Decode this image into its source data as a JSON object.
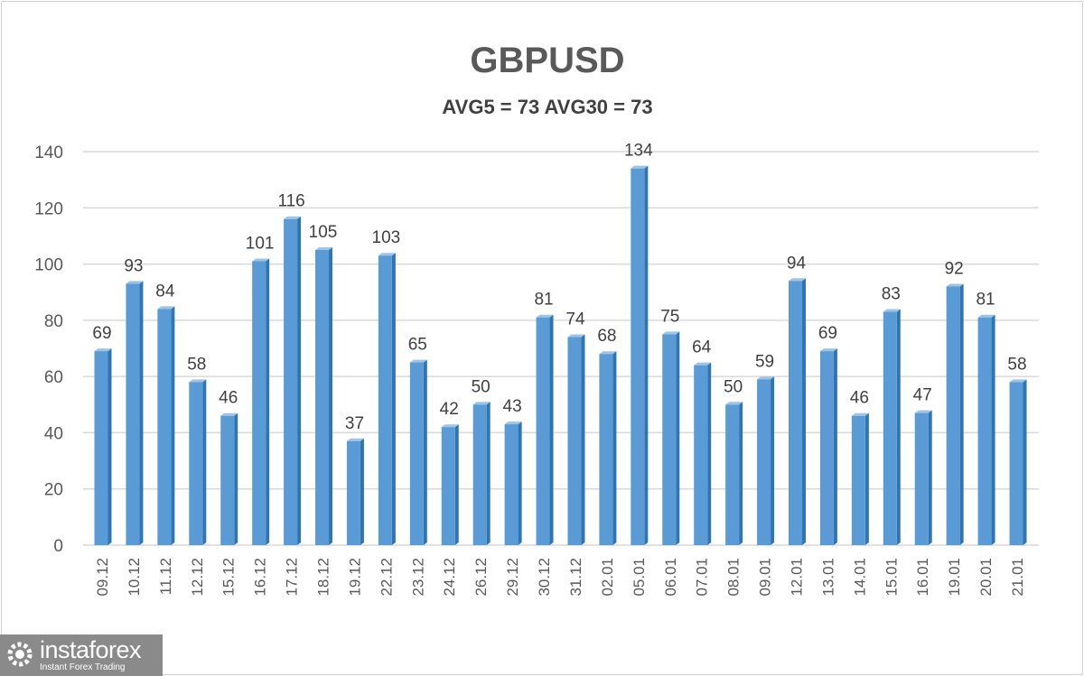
{
  "chart_data": {
    "type": "bar",
    "title": "GBPUSD",
    "subtitle": "AVG5 = 73 AVG30 = 73",
    "categories": [
      "09.12",
      "10.12",
      "11.12",
      "12.12",
      "15.12",
      "16.12",
      "17.12",
      "18.12",
      "19.12",
      "22.12",
      "23.12",
      "24.12",
      "26.12",
      "29.12",
      "30.12",
      "31.12",
      "02.01",
      "05.01",
      "06.01",
      "07.01",
      "08.01",
      "09.01",
      "12.01",
      "13.01",
      "14.01",
      "15.01",
      "16.01",
      "19.01",
      "20.01",
      "21.01"
    ],
    "values": [
      69,
      93,
      84,
      58,
      46,
      101,
      116,
      105,
      37,
      103,
      65,
      42,
      50,
      43,
      81,
      74,
      68,
      134,
      75,
      64,
      50,
      59,
      94,
      69,
      46,
      83,
      47,
      92,
      81,
      58
    ],
    "xlabel": "",
    "ylabel": "",
    "ylim": [
      0,
      140
    ],
    "yticks": [
      0,
      20,
      40,
      60,
      80,
      100,
      120,
      140
    ],
    "grid": true,
    "data_labels": true,
    "bar_color": "#5b9bd5",
    "bar_side_color": "#2e75b6"
  },
  "logo": {
    "name": "instaforex",
    "tagline": "Instant Forex Trading"
  }
}
